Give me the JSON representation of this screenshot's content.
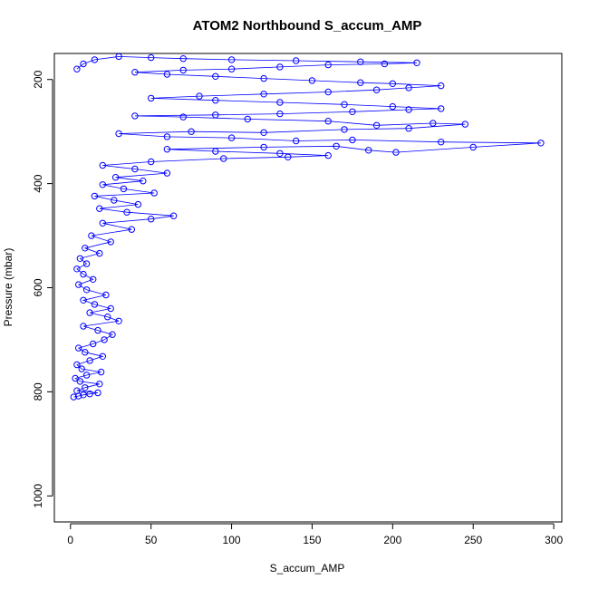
{
  "chart_data": {
    "type": "scatter",
    "title": "ATOM2 Northbound S_accum_AMP",
    "xlabel": "S_accum_AMP",
    "ylabel": "Pressure (mbar)",
    "xlim": [
      -10,
      305
    ],
    "ylim": [
      1050,
      150
    ],
    "y_inverted": true,
    "xticks": [
      0,
      50,
      100,
      150,
      200,
      250,
      300
    ],
    "yticks": [
      200,
      400,
      600,
      800,
      1000
    ],
    "grid": false,
    "legend": "none",
    "series": [
      {
        "color": "#0000ff",
        "marker": "open-circle",
        "connected": true,
        "points": [
          [
            2,
            810
          ],
          [
            5,
            808
          ],
          [
            8,
            806
          ],
          [
            12,
            804
          ],
          [
            17,
            802
          ],
          [
            4,
            798
          ],
          [
            9,
            792
          ],
          [
            18,
            785
          ],
          [
            6,
            780
          ],
          [
            3,
            774
          ],
          [
            10,
            768
          ],
          [
            19,
            762
          ],
          [
            7,
            756
          ],
          [
            4,
            748
          ],
          [
            12,
            740
          ],
          [
            20,
            732
          ],
          [
            9,
            724
          ],
          [
            5,
            716
          ],
          [
            14,
            708
          ],
          [
            21,
            700
          ],
          [
            26,
            690
          ],
          [
            17,
            682
          ],
          [
            8,
            674
          ],
          [
            30,
            664
          ],
          [
            23,
            656
          ],
          [
            12,
            648
          ],
          [
            25,
            640
          ],
          [
            15,
            632
          ],
          [
            8,
            624
          ],
          [
            22,
            614
          ],
          [
            10,
            604
          ],
          [
            5,
            594
          ],
          [
            14,
            584
          ],
          [
            8,
            574
          ],
          [
            4,
            564
          ],
          [
            10,
            554
          ],
          [
            6,
            544
          ],
          [
            18,
            534
          ],
          [
            9,
            524
          ],
          [
            25,
            512
          ],
          [
            13,
            500
          ],
          [
            38,
            488
          ],
          [
            20,
            476
          ],
          [
            50,
            468
          ],
          [
            64,
            462
          ],
          [
            35,
            455
          ],
          [
            18,
            448
          ],
          [
            42,
            440
          ],
          [
            27,
            432
          ],
          [
            15,
            424
          ],
          [
            52,
            418
          ],
          [
            33,
            410
          ],
          [
            20,
            402
          ],
          [
            45,
            395
          ],
          [
            28,
            388
          ],
          [
            60,
            380
          ],
          [
            40,
            372
          ],
          [
            20,
            365
          ],
          [
            50,
            358
          ],
          [
            95,
            352
          ],
          [
            135,
            349
          ],
          [
            160,
            346
          ],
          [
            130,
            342
          ],
          [
            90,
            338
          ],
          [
            60,
            334
          ],
          [
            120,
            330
          ],
          [
            165,
            328
          ],
          [
            185,
            336
          ],
          [
            202,
            340
          ],
          [
            250,
            330
          ],
          [
            292,
            322
          ],
          [
            230,
            320
          ],
          [
            175,
            316
          ],
          [
            140,
            318
          ],
          [
            100,
            312
          ],
          [
            60,
            310
          ],
          [
            30,
            304
          ],
          [
            75,
            300
          ],
          [
            120,
            302
          ],
          [
            170,
            296
          ],
          [
            210,
            294
          ],
          [
            245,
            286
          ],
          [
            225,
            284
          ],
          [
            190,
            288
          ],
          [
            160,
            280
          ],
          [
            110,
            276
          ],
          [
            70,
            272
          ],
          [
            40,
            270
          ],
          [
            90,
            268
          ],
          [
            130,
            266
          ],
          [
            175,
            262
          ],
          [
            210,
            258
          ],
          [
            230,
            256
          ],
          [
            200,
            252
          ],
          [
            170,
            248
          ],
          [
            130,
            244
          ],
          [
            90,
            240
          ],
          [
            50,
            236
          ],
          [
            80,
            232
          ],
          [
            120,
            228
          ],
          [
            160,
            224
          ],
          [
            190,
            220
          ],
          [
            210,
            216
          ],
          [
            230,
            212
          ],
          [
            200,
            208
          ],
          [
            180,
            206
          ],
          [
            150,
            202
          ],
          [
            120,
            198
          ],
          [
            90,
            194
          ],
          [
            60,
            190
          ],
          [
            40,
            186
          ],
          [
            70,
            182
          ],
          [
            100,
            180
          ],
          [
            130,
            176
          ],
          [
            160,
            172
          ],
          [
            195,
            170
          ],
          [
            215,
            168
          ],
          [
            180,
            166
          ],
          [
            140,
            164
          ],
          [
            100,
            162
          ],
          [
            70,
            160
          ],
          [
            50,
            158
          ],
          [
            30,
            156
          ],
          [
            15,
            162
          ],
          [
            8,
            170
          ],
          [
            4,
            180
          ]
        ]
      }
    ]
  }
}
